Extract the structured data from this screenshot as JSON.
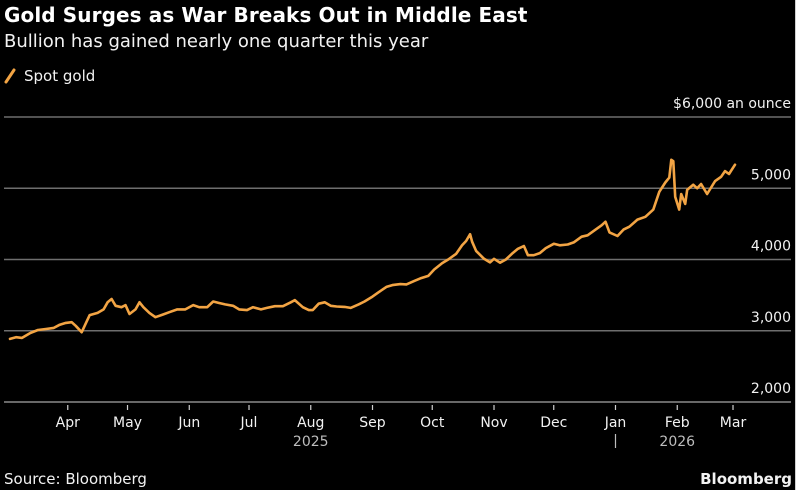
{
  "header": {
    "title": "Gold Surges as War Breaks Out in Middle East",
    "subtitle": "Bullion has gained nearly one quarter this year"
  },
  "footer": {
    "source": "Source: Bloomberg",
    "brand": "Bloomberg"
  },
  "colors": {
    "background": "#000000",
    "series": "#f2a444",
    "gridline": "#6e6e6e",
    "text": "#f2f2f2"
  },
  "chart_data": {
    "type": "line",
    "title": "Gold Surges as War Breaks Out in Middle East",
    "subtitle": "Bullion has gained nearly one quarter this year",
    "xlabel": "",
    "ylabel": "$ an ounce",
    "ylim": [
      2000,
      6000
    ],
    "xlim": [
      "2025-03-01",
      "2026-03-06"
    ],
    "grid": true,
    "legend_position": "top-left",
    "y_ticks": [
      {
        "value": 2000,
        "label": "2,000"
      },
      {
        "value": 3000,
        "label": "3,000"
      },
      {
        "value": 4000,
        "label": "4,000"
      },
      {
        "value": 5000,
        "label": "5,000"
      },
      {
        "value": 6000,
        "label": "$6,000 an ounce"
      }
    ],
    "x_ticks": [
      {
        "date": "2025-04-01",
        "label": "Apr"
      },
      {
        "date": "2025-05-01",
        "label": "May"
      },
      {
        "date": "2025-06-01",
        "label": "Jun"
      },
      {
        "date": "2025-07-01",
        "label": "Jul"
      },
      {
        "date": "2025-08-01",
        "label": "Aug"
      },
      {
        "date": "2025-09-01",
        "label": "Sep"
      },
      {
        "date": "2025-10-01",
        "label": "Oct"
      },
      {
        "date": "2025-11-01",
        "label": "Nov"
      },
      {
        "date": "2025-12-01",
        "label": "Dec"
      },
      {
        "date": "2026-01-01",
        "label": "Jan"
      },
      {
        "date": "2026-02-01",
        "label": "Feb"
      },
      {
        "date": "2026-03-01",
        "label": "Mar"
      }
    ],
    "year_labels": [
      {
        "date": "2025-08-01",
        "label": "2025"
      },
      {
        "date": "2026-02-01",
        "label": "2026"
      }
    ],
    "year_divider": {
      "date": "2026-01-01",
      "label": "|"
    },
    "series": [
      {
        "name": "Spot gold",
        "color": "#f2a444",
        "points": [
          [
            "2025-03-03",
            2885
          ],
          [
            "2025-03-06",
            2910
          ],
          [
            "2025-03-09",
            2900
          ],
          [
            "2025-03-13",
            2965
          ],
          [
            "2025-03-17",
            3010
          ],
          [
            "2025-03-21",
            3025
          ],
          [
            "2025-03-25",
            3040
          ],
          [
            "2025-03-28",
            3085
          ],
          [
            "2025-03-31",
            3110
          ],
          [
            "2025-04-03",
            3120
          ],
          [
            "2025-04-05",
            3070
          ],
          [
            "2025-04-08",
            2980
          ],
          [
            "2025-04-10",
            3100
          ],
          [
            "2025-04-12",
            3220
          ],
          [
            "2025-04-16",
            3250
          ],
          [
            "2025-04-19",
            3300
          ],
          [
            "2025-04-21",
            3400
          ],
          [
            "2025-04-23",
            3445
          ],
          [
            "2025-04-25",
            3350
          ],
          [
            "2025-04-28",
            3330
          ],
          [
            "2025-04-30",
            3360
          ],
          [
            "2025-05-02",
            3235
          ],
          [
            "2025-05-05",
            3300
          ],
          [
            "2025-05-07",
            3400
          ],
          [
            "2025-05-09",
            3330
          ],
          [
            "2025-05-12",
            3250
          ],
          [
            "2025-05-15",
            3190
          ],
          [
            "2025-05-19",
            3230
          ],
          [
            "2025-05-22",
            3260
          ],
          [
            "2025-05-26",
            3300
          ],
          [
            "2025-05-30",
            3300
          ],
          [
            "2025-06-03",
            3360
          ],
          [
            "2025-06-06",
            3330
          ],
          [
            "2025-06-10",
            3330
          ],
          [
            "2025-06-13",
            3410
          ],
          [
            "2025-06-16",
            3390
          ],
          [
            "2025-06-19",
            3370
          ],
          [
            "2025-06-23",
            3350
          ],
          [
            "2025-06-26",
            3300
          ],
          [
            "2025-06-30",
            3290
          ],
          [
            "2025-07-03",
            3330
          ],
          [
            "2025-07-07",
            3300
          ],
          [
            "2025-07-10",
            3320
          ],
          [
            "2025-07-14",
            3345
          ],
          [
            "2025-07-18",
            3345
          ],
          [
            "2025-07-22",
            3400
          ],
          [
            "2025-07-24",
            3430
          ],
          [
            "2025-07-28",
            3330
          ],
          [
            "2025-07-31",
            3290
          ],
          [
            "2025-08-02",
            3290
          ],
          [
            "2025-08-05",
            3380
          ],
          [
            "2025-08-08",
            3400
          ],
          [
            "2025-08-11",
            3350
          ],
          [
            "2025-08-14",
            3340
          ],
          [
            "2025-08-18",
            3335
          ],
          [
            "2025-08-21",
            3320
          ],
          [
            "2025-08-25",
            3370
          ],
          [
            "2025-08-28",
            3410
          ],
          [
            "2025-09-01",
            3480
          ],
          [
            "2025-09-04",
            3540
          ],
          [
            "2025-09-08",
            3615
          ],
          [
            "2025-09-11",
            3640
          ],
          [
            "2025-09-15",
            3655
          ],
          [
            "2025-09-18",
            3650
          ],
          [
            "2025-09-22",
            3700
          ],
          [
            "2025-09-25",
            3735
          ],
          [
            "2025-09-29",
            3770
          ],
          [
            "2025-10-02",
            3860
          ],
          [
            "2025-10-06",
            3950
          ],
          [
            "2025-10-09",
            4000
          ],
          [
            "2025-10-13",
            4080
          ],
          [
            "2025-10-16",
            4200
          ],
          [
            "2025-10-18",
            4260
          ],
          [
            "2025-10-20",
            4355
          ],
          [
            "2025-10-21",
            4250
          ],
          [
            "2025-10-23",
            4120
          ],
          [
            "2025-10-27",
            4010
          ],
          [
            "2025-10-30",
            3960
          ],
          [
            "2025-11-01",
            4010
          ],
          [
            "2025-11-04",
            3955
          ],
          [
            "2025-11-07",
            4000
          ],
          [
            "2025-11-10",
            4080
          ],
          [
            "2025-11-13",
            4150
          ],
          [
            "2025-11-16",
            4190
          ],
          [
            "2025-11-18",
            4060
          ],
          [
            "2025-11-21",
            4060
          ],
          [
            "2025-11-24",
            4090
          ],
          [
            "2025-11-27",
            4160
          ],
          [
            "2025-12-01",
            4220
          ],
          [
            "2025-12-04",
            4200
          ],
          [
            "2025-12-08",
            4210
          ],
          [
            "2025-12-11",
            4240
          ],
          [
            "2025-12-15",
            4320
          ],
          [
            "2025-12-18",
            4340
          ],
          [
            "2025-12-22",
            4420
          ],
          [
            "2025-12-25",
            4480
          ],
          [
            "2025-12-27",
            4530
          ],
          [
            "2025-12-29",
            4380
          ],
          [
            "2026-01-02",
            4330
          ],
          [
            "2026-01-05",
            4420
          ],
          [
            "2026-01-08",
            4460
          ],
          [
            "2026-01-12",
            4560
          ],
          [
            "2026-01-16",
            4600
          ],
          [
            "2026-01-20",
            4700
          ],
          [
            "2026-01-23",
            4950
          ],
          [
            "2026-01-26",
            5080
          ],
          [
            "2026-01-28",
            5150
          ],
          [
            "2026-01-29",
            5400
          ],
          [
            "2026-01-30",
            5380
          ],
          [
            "2026-01-31",
            4880
          ],
          [
            "2026-02-02",
            4700
          ],
          [
            "2026-02-03",
            4920
          ],
          [
            "2026-02-05",
            4780
          ],
          [
            "2026-02-06",
            4980
          ],
          [
            "2026-02-09",
            5050
          ],
          [
            "2026-02-11",
            5000
          ],
          [
            "2026-02-13",
            5060
          ],
          [
            "2026-02-16",
            4920
          ],
          [
            "2026-02-18",
            5010
          ],
          [
            "2026-02-20",
            5100
          ],
          [
            "2026-02-23",
            5160
          ],
          [
            "2026-02-25",
            5240
          ],
          [
            "2026-02-27",
            5200
          ],
          [
            "2026-03-02",
            5330
          ]
        ]
      }
    ]
  }
}
